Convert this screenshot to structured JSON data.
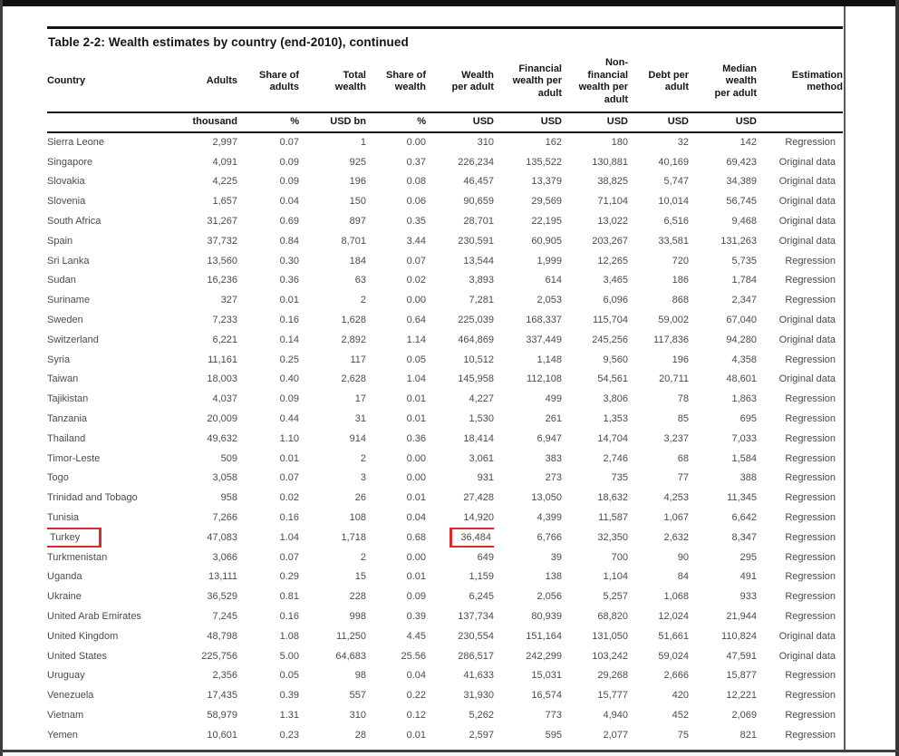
{
  "page": {
    "title": "Table 2-2: Wealth estimates by country (end-2010), continued"
  },
  "table": {
    "columns": [
      {
        "label": "Country",
        "unit": ""
      },
      {
        "label": "Adults",
        "unit": "thousand"
      },
      {
        "label": "Share of\nadults",
        "unit": "%"
      },
      {
        "label": "Total\nwealth",
        "unit": "USD bn"
      },
      {
        "label": "Share of\nwealth",
        "unit": "%"
      },
      {
        "label": "Wealth\nper adult",
        "unit": "USD"
      },
      {
        "label": "Financial\nwealth per\nadult",
        "unit": "USD"
      },
      {
        "label": "Non-\nfinancial\nwealth per\nadult",
        "unit": "USD"
      },
      {
        "label": "Debt per\nadult",
        "unit": "USD"
      },
      {
        "label": "Median\nwealth\nper adult",
        "unit": "USD"
      },
      {
        "label": "Estimation\nmethod",
        "unit": ""
      }
    ],
    "rows": [
      [
        "Sierra Leone",
        "2,997",
        "0.07",
        "1",
        "0.00",
        "310",
        "162",
        "180",
        "32",
        "142",
        "Regression"
      ],
      [
        "Singapore",
        "4,091",
        "0.09",
        "925",
        "0.37",
        "226,234",
        "135,522",
        "130,881",
        "40,169",
        "69,423",
        "Original data"
      ],
      [
        "Slovakia",
        "4,225",
        "0.09",
        "196",
        "0.08",
        "46,457",
        "13,379",
        "38,825",
        "5,747",
        "34,389",
        "Original data"
      ],
      [
        "Slovenia",
        "1,657",
        "0.04",
        "150",
        "0.06",
        "90,659",
        "29,569",
        "71,104",
        "10,014",
        "56,745",
        "Original data"
      ],
      [
        "South Africa",
        "31,267",
        "0.69",
        "897",
        "0.35",
        "28,701",
        "22,195",
        "13,022",
        "6,516",
        "9,468",
        "Original data"
      ],
      [
        "Spain",
        "37,732",
        "0.84",
        "8,701",
        "3.44",
        "230,591",
        "60,905",
        "203,267",
        "33,581",
        "131,263",
        "Original data"
      ],
      [
        "Sri Lanka",
        "13,560",
        "0.30",
        "184",
        "0.07",
        "13,544",
        "1,999",
        "12,265",
        "720",
        "5,735",
        "Regression"
      ],
      [
        "Sudan",
        "16,236",
        "0.36",
        "63",
        "0.02",
        "3,893",
        "614",
        "3,465",
        "186",
        "1,784",
        "Regression"
      ],
      [
        "Suriname",
        "327",
        "0.01",
        "2",
        "0.00",
        "7,281",
        "2,053",
        "6,096",
        "868",
        "2,347",
        "Regression"
      ],
      [
        "Sweden",
        "7,233",
        "0.16",
        "1,628",
        "0.64",
        "225,039",
        "168,337",
        "115,704",
        "59,002",
        "67,040",
        "Original data"
      ],
      [
        "Switzerland",
        "6,221",
        "0.14",
        "2,892",
        "1.14",
        "464,869",
        "337,449",
        "245,256",
        "117,836",
        "94,280",
        "Original data"
      ],
      [
        "Syria",
        "11,161",
        "0.25",
        "117",
        "0.05",
        "10,512",
        "1,148",
        "9,560",
        "196",
        "4,358",
        "Regression"
      ],
      [
        "Taiwan",
        "18,003",
        "0.40",
        "2,628",
        "1.04",
        "145,958",
        "112,108",
        "54,561",
        "20,711",
        "48,601",
        "Original data"
      ],
      [
        "Tajikistan",
        "4,037",
        "0.09",
        "17",
        "0.01",
        "4,227",
        "499",
        "3,806",
        "78",
        "1,863",
        "Regression"
      ],
      [
        "Tanzania",
        "20,009",
        "0.44",
        "31",
        "0.01",
        "1,530",
        "261",
        "1,353",
        "85",
        "695",
        "Regression"
      ],
      [
        "Thailand",
        "49,632",
        "1.10",
        "914",
        "0.36",
        "18,414",
        "6,947",
        "14,704",
        "3,237",
        "7,033",
        "Regression"
      ],
      [
        "Timor-Leste",
        "509",
        "0.01",
        "2",
        "0.00",
        "3,061",
        "383",
        "2,746",
        "68",
        "1,584",
        "Regression"
      ],
      [
        "Togo",
        "3,058",
        "0.07",
        "3",
        "0.00",
        "931",
        "273",
        "735",
        "77",
        "388",
        "Regression"
      ],
      [
        "Trinidad and Tobago",
        "958",
        "0.02",
        "26",
        "0.01",
        "27,428",
        "13,050",
        "18,632",
        "4,253",
        "11,345",
        "Regression"
      ],
      [
        "Tunisia",
        "7,266",
        "0.16",
        "108",
        "0.04",
        "14,920",
        "4,399",
        "11,587",
        "1,067",
        "6,642",
        "Regression"
      ],
      [
        "Turkey",
        "47,083",
        "1.04",
        "1,718",
        "0.68",
        "36,484",
        "6,766",
        "32,350",
        "2,632",
        "8,347",
        "Regression"
      ],
      [
        "Turkmenistan",
        "3,066",
        "0.07",
        "2",
        "0.00",
        "649",
        "39",
        "700",
        "90",
        "295",
        "Regression"
      ],
      [
        "Uganda",
        "13,111",
        "0.29",
        "15",
        "0.01",
        "1,159",
        "138",
        "1,104",
        "84",
        "491",
        "Regression"
      ],
      [
        "Ukraine",
        "36,529",
        "0.81",
        "228",
        "0.09",
        "6,245",
        "2,056",
        "5,257",
        "1,068",
        "933",
        "Regression"
      ],
      [
        "United Arab Emirates",
        "7,245",
        "0.16",
        "998",
        "0.39",
        "137,734",
        "80,939",
        "68,820",
        "12,024",
        "21,944",
        "Regression"
      ],
      [
        "United Kingdom",
        "48,798",
        "1.08",
        "11,250",
        "4.45",
        "230,554",
        "151,164",
        "131,050",
        "51,661",
        "110,824",
        "Original data"
      ],
      [
        "United States",
        "225,756",
        "5.00",
        "64,683",
        "25.56",
        "286,517",
        "242,299",
        "103,242",
        "59,024",
        "47,591",
        "Original data"
      ],
      [
        "Uruguay",
        "2,356",
        "0.05",
        "98",
        "0.04",
        "41,633",
        "15,031",
        "29,268",
        "2,666",
        "15,877",
        "Regression"
      ],
      [
        "Venezuela",
        "17,435",
        "0.39",
        "557",
        "0.22",
        "31,930",
        "16,574",
        "15,777",
        "420",
        "12,221",
        "Regression"
      ],
      [
        "Vietnam",
        "58,979",
        "1.31",
        "310",
        "0.12",
        "5,262",
        "773",
        "4,940",
        "452",
        "2,069",
        "Regression"
      ],
      [
        "Yemen",
        "10,601",
        "0.23",
        "28",
        "0.01",
        "2,597",
        "595",
        "2,077",
        "75",
        "821",
        "Regression"
      ]
    ]
  },
  "highlights": {
    "color": "#d92a2e",
    "cells": [
      {
        "country": "Turkey",
        "column_index": 0
      },
      {
        "country": "Turkey",
        "column_index": 5
      }
    ]
  }
}
